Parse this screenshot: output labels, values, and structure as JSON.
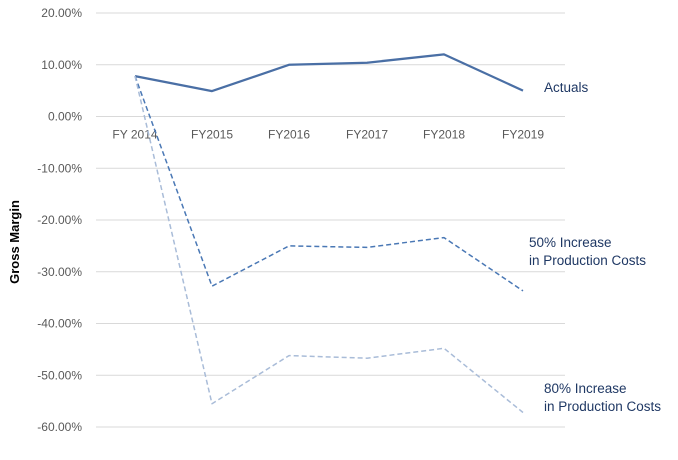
{
  "chart_data": {
    "type": "line",
    "title": "",
    "xlabel": "",
    "ylabel": "Gross Margin",
    "categories": [
      "FY 2014",
      "FY2015",
      "FY2016",
      "FY2017",
      "FY2018",
      "FY2019"
    ],
    "ylim": [
      -60,
      20
    ],
    "y_ticks": [
      "20.00%",
      "10.00%",
      "0.00%",
      "-10.00%",
      "-20.00%",
      "-30.00%",
      "-40.00%",
      "-50.00%",
      "-60.00%"
    ],
    "grid": true,
    "legend": "none (series labeled inline at right)",
    "series": [
      {
        "name_lines": [
          "Actuals"
        ],
        "values": [
          7.8,
          4.9,
          10.0,
          10.4,
          12.0,
          5.0
        ],
        "color": "#4a6fa5",
        "style": "solid"
      },
      {
        "name_lines": [
          "50% Increase",
          "in Production Costs"
        ],
        "values": [
          7.8,
          -32.8,
          -25.0,
          -25.3,
          -23.4,
          -33.7
        ],
        "color": "#4a78b5",
        "style": "dashed"
      },
      {
        "name_lines": [
          "80% Increase",
          "in Production Costs"
        ],
        "values": [
          7.8,
          -55.5,
          -46.2,
          -46.7,
          -44.8,
          -57.2
        ],
        "color": "#a9bcd8",
        "style": "dashed"
      }
    ]
  }
}
